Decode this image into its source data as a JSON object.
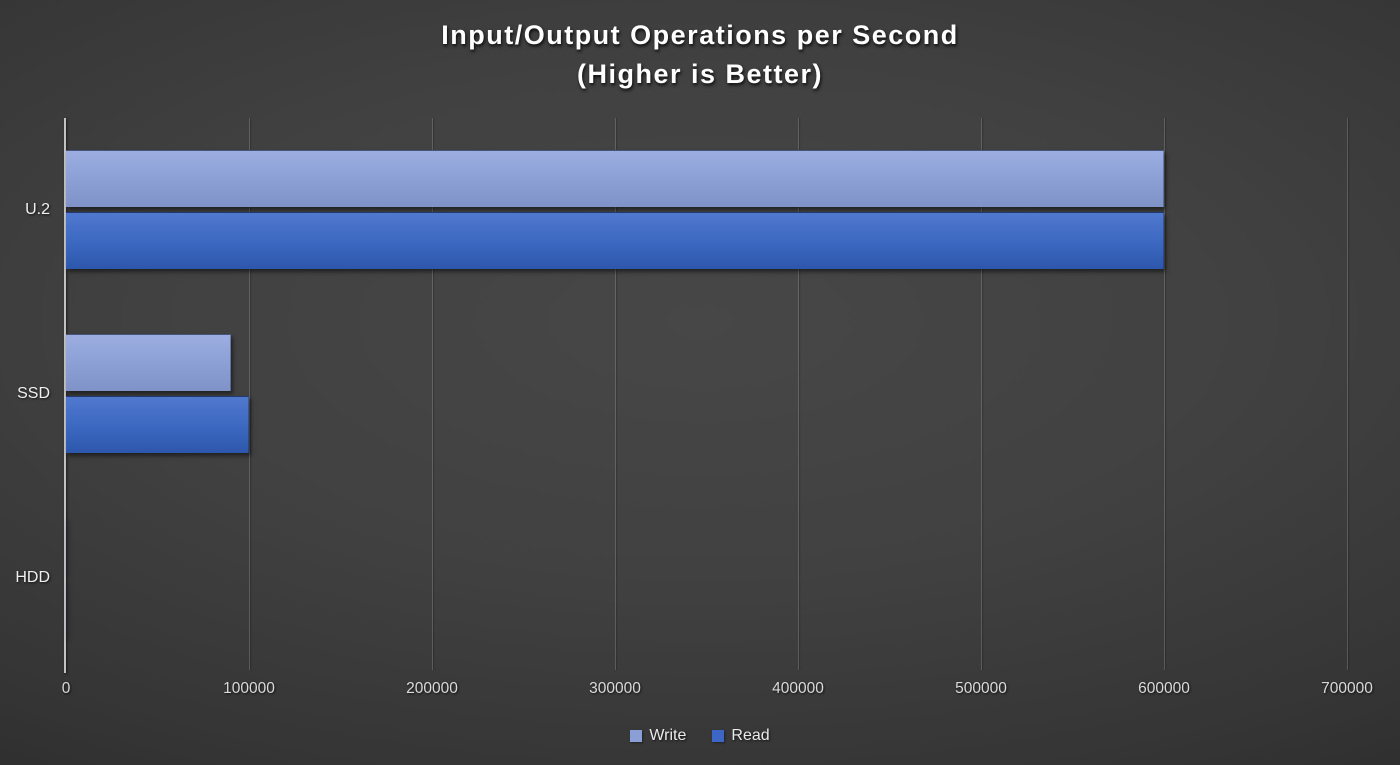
{
  "chart_data": {
    "type": "bar",
    "orientation": "horizontal",
    "title": "Input/Output Operations per Second",
    "subtitle": "(Higher is Better)",
    "categories": [
      "U.2",
      "SSD",
      "HDD"
    ],
    "series": [
      {
        "name": "Write",
        "color": "#8B9FD7",
        "values": [
          600000,
          90000,
          200
        ]
      },
      {
        "name": "Read",
        "color": "#3C67C6",
        "values": [
          600000,
          100000,
          200
        ]
      }
    ],
    "xlim": [
      0,
      700000
    ],
    "x_ticks": [
      0,
      100000,
      200000,
      300000,
      400000,
      500000,
      600000,
      700000
    ],
    "x_tick_labels": [
      "0",
      "100000",
      "200000",
      "300000",
      "400000",
      "500000",
      "600000",
      "700000"
    ],
    "grid": "vertical-gridlines-on",
    "legend_position": "bottom-center"
  },
  "colors": {
    "background_center": "#474747",
    "background_edge": "#202020",
    "write_bar_top": "#9CAEE1",
    "write_bar_mid": "#8CA0D6",
    "write_bar_bottom": "#7F93C8",
    "read_bar_top": "#5079CE",
    "read_bar_mid": "#3E69C2",
    "read_bar_bottom": "#2D57AC",
    "axis_line": "#c2c2c2",
    "gridline": "rgba(255,255,255,0.17)",
    "title_text": "#ffffff",
    "tick_text": "#dadada",
    "category_text": "#f0f0f0",
    "legend_text": "#eaeaea"
  }
}
